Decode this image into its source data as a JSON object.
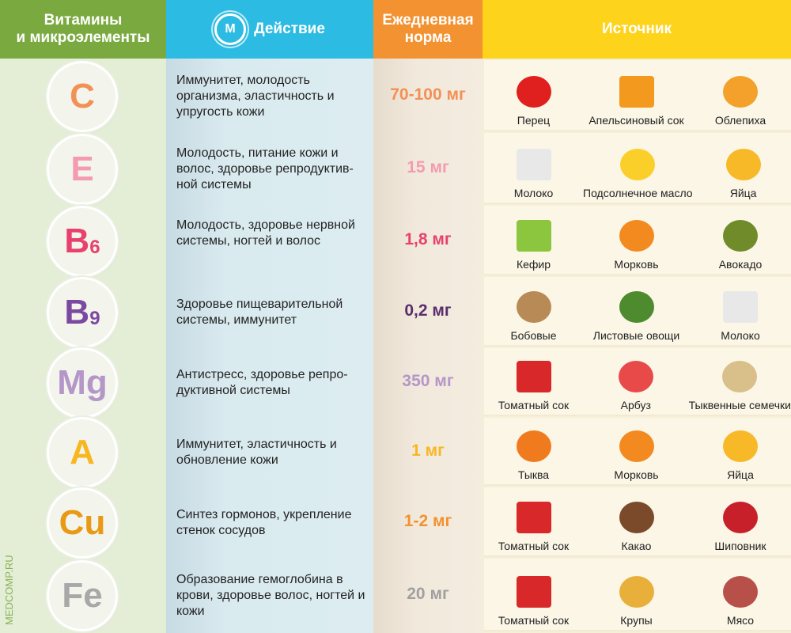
{
  "header": {
    "col1": "Витамины\nи микроэлементы",
    "col2": "Действие",
    "col3": "Ежедневная\nнорма",
    "col4": "Источник",
    "logo": "M"
  },
  "watermark": "MEDCOMP.RU",
  "rows": [
    {
      "symbol": "C",
      "sub": "",
      "color": "#f39055",
      "action": "Иммунитет, молодость организма, эластичность и упругость кожи",
      "norm": "70-100 мг",
      "norm_color": "#f39055",
      "foods": [
        {
          "name": "Перец",
          "icon": "red-pepper-icon",
          "color": "#e0201e"
        },
        {
          "name": "Апельсиновый сок",
          "icon": "orange-juice-icon",
          "color": "#f39a1e"
        },
        {
          "name": "Облепиха",
          "icon": "sea-buckthorn-icon",
          "color": "#f3a12a"
        }
      ]
    },
    {
      "symbol": "E",
      "sub": "",
      "color": "#f49bb0",
      "action": "Молодость, питание кожи и волос, здоровье репродуктив-ной системы",
      "norm": "15 мг",
      "norm_color": "#f49bb0",
      "foods": [
        {
          "name": "Молоко",
          "icon": "milk-icon",
          "color": "#e8e8e8"
        },
        {
          "name": "Подсолнечное масло",
          "icon": "oil-drop-icon",
          "color": "#fbcf2a"
        },
        {
          "name": "Яйца",
          "icon": "egg-icon",
          "color": "#f7b928"
        }
      ]
    },
    {
      "symbol": "B",
      "sub": "6",
      "color": "#e8416d",
      "action": "Молодость, здоровье нервной системы, ногтей и волос",
      "norm": "1,8 мг",
      "norm_color": "#e8416d",
      "foods": [
        {
          "name": "Кефир",
          "icon": "kefir-icon",
          "color": "#8cc63f"
        },
        {
          "name": "Морковь",
          "icon": "carrot-icon",
          "color": "#f38a1f"
        },
        {
          "name": "Авокадо",
          "icon": "avocado-icon",
          "color": "#6f8b2a"
        }
      ]
    },
    {
      "symbol": "B",
      "sub": "9",
      "color": "#7b4aa0",
      "action": "Здоровье пищеварительной системы, иммунитет",
      "norm": "0,2 мг",
      "norm_color": "#5b2e6e",
      "foods": [
        {
          "name": "Бобовые",
          "icon": "beans-icon",
          "color": "#b88a55"
        },
        {
          "name": "Листовые овощи",
          "icon": "leafy-greens-icon",
          "color": "#4e8a2e"
        },
        {
          "name": "Молоко",
          "icon": "milk-icon",
          "color": "#e8e8e8"
        }
      ]
    },
    {
      "symbol": "Mg",
      "sub": "",
      "color": "#b596c8",
      "action": "Антистресс, здоровье репро-дуктивной системы",
      "norm": "350 мг",
      "norm_color": "#b596c8",
      "foods": [
        {
          "name": "Томатный сок",
          "icon": "tomato-juice-icon",
          "color": "#d8282a"
        },
        {
          "name": "Арбуз",
          "icon": "watermelon-icon",
          "color": "#e84a4a"
        },
        {
          "name": "Тыквенные семечки",
          "icon": "pumpkin-seeds-icon",
          "color": "#d9c08a"
        }
      ]
    },
    {
      "symbol": "A",
      "sub": "",
      "color": "#f8b621",
      "action": "Иммунитет, эластичность и обновление кожи",
      "norm": "1 мг",
      "norm_color": "#f8b621",
      "foods": [
        {
          "name": "Тыква",
          "icon": "pumpkin-icon",
          "color": "#f07b1e"
        },
        {
          "name": "Морковь",
          "icon": "carrot-icon",
          "color": "#f38a1f"
        },
        {
          "name": "Яйца",
          "icon": "egg-icon",
          "color": "#f7b928"
        }
      ]
    },
    {
      "symbol": "Cu",
      "sub": "",
      "color": "#e89a16",
      "action": "Синтез гормонов, укрепление стенок сосудов",
      "norm": "1-2 мг",
      "norm_color": "#f39130",
      "foods": [
        {
          "name": "Томатный сок",
          "icon": "tomato-juice-icon",
          "color": "#d8282a"
        },
        {
          "name": "Какао",
          "icon": "cocoa-icon",
          "color": "#7a4a2a"
        },
        {
          "name": "Шиповник",
          "icon": "rosehip-icon",
          "color": "#c8202a"
        }
      ]
    },
    {
      "symbol": "Fe",
      "sub": "",
      "color": "#a8a8a8",
      "action": "Образование гемоглобина в крови, здоровье волос, ногтей и кожи",
      "norm": "20 мг",
      "norm_color": "#a0a0a0",
      "foods": [
        {
          "name": "Томатный сок",
          "icon": "tomato-juice-icon",
          "color": "#d8282a"
        },
        {
          "name": "Крупы",
          "icon": "grains-icon",
          "color": "#e8b03a"
        },
        {
          "name": "Мясо",
          "icon": "meat-icon",
          "color": "#b8504a"
        }
      ]
    }
  ]
}
